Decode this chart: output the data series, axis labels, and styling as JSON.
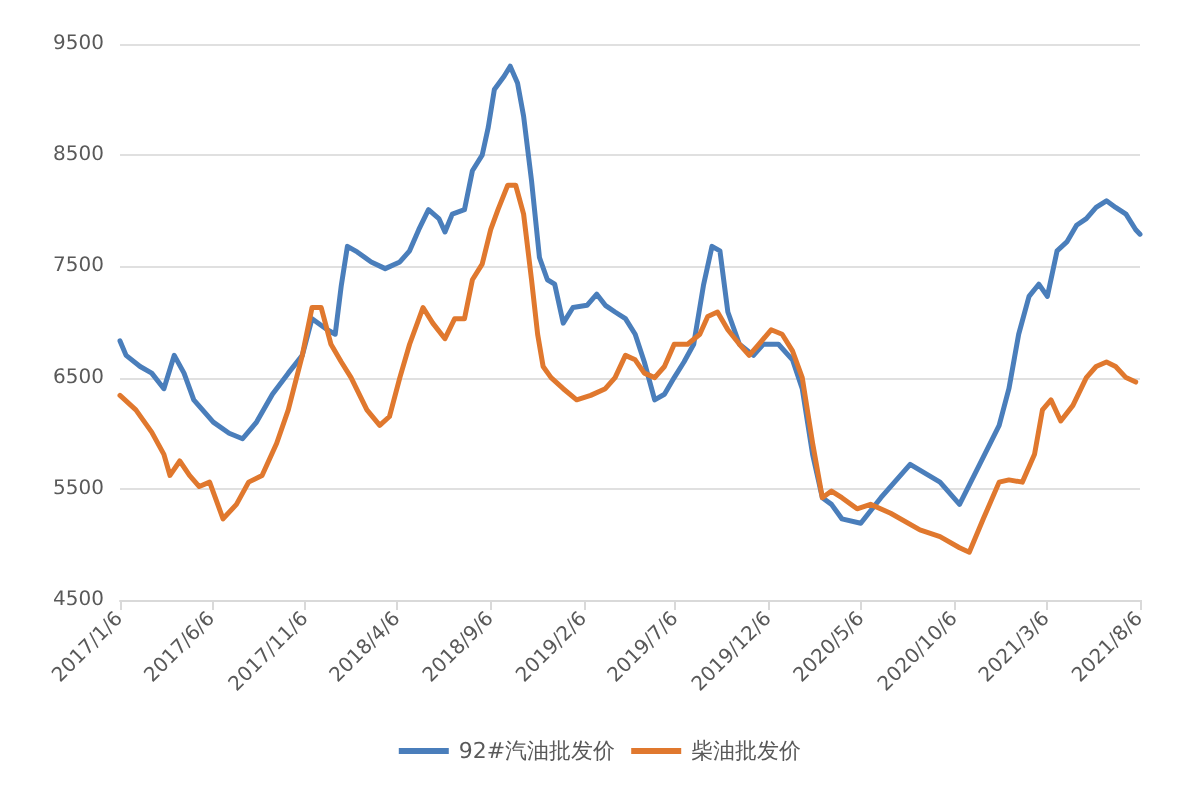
{
  "chart_data": {
    "type": "line",
    "legend": "bottom",
    "grid": "y",
    "marker": "none",
    "line_style": "solid",
    "ylim": [
      4500,
      9500
    ],
    "yticks": [
      4500,
      5500,
      6500,
      7500,
      8500,
      9500
    ],
    "xlim": [
      "2017-01-06",
      "2021-08-06"
    ],
    "xticks": [
      {
        "value": "2017-01-06",
        "label": "2017/1/6"
      },
      {
        "value": "2017-06-06",
        "label": "2017/6/6"
      },
      {
        "value": "2017-11-06",
        "label": "2017/11/6"
      },
      {
        "value": "2018-04-06",
        "label": "2018/4/6"
      },
      {
        "value": "2018-09-06",
        "label": "2018/9/6"
      },
      {
        "value": "2019-02-06",
        "label": "2019/2/6"
      },
      {
        "value": "2019-07-06",
        "label": "2019/7/6"
      },
      {
        "value": "2019-12-06",
        "label": "2019/12/6"
      },
      {
        "value": "2020-05-06",
        "label": "2020/5/6"
      },
      {
        "value": "2020-10-06",
        "label": "2020/10/6"
      },
      {
        "value": "2021-03-06",
        "label": "2021/3/6"
      },
      {
        "value": "2021-08-06",
        "label": "2021/8/6"
      }
    ],
    "series": [
      {
        "name": "92#汽油批发价",
        "color": "#4a7ebb",
        "x": [
          "2017-01-06",
          "2017-01-16",
          "2017-02-08",
          "2017-02-27",
          "2017-03-19",
          "2017-04-05",
          "2017-04-21",
          "2017-05-07",
          "2017-06-08",
          "2017-07-04",
          "2017-07-26",
          "2017-08-18",
          "2017-09-13",
          "2017-10-09",
          "2017-11-01",
          "2017-11-17",
          "2017-12-12",
          "2017-12-25",
          "2018-01-04",
          "2018-01-14",
          "2018-01-30",
          "2018-02-22",
          "2018-03-17",
          "2018-04-10",
          "2018-04-26",
          "2018-05-11",
          "2018-05-27",
          "2018-06-13",
          "2018-06-23",
          "2018-07-05",
          "2018-07-25",
          "2018-08-07",
          "2018-08-23",
          "2018-09-02",
          "2018-09-12",
          "2018-09-28",
          "2018-10-08",
          "2018-10-20",
          "2018-10-30",
          "2018-11-12",
          "2018-11-25",
          "2018-12-08",
          "2018-12-20",
          "2019-01-03",
          "2019-01-19",
          "2019-02-11",
          "2019-02-27",
          "2019-03-13",
          "2019-03-29",
          "2019-04-15",
          "2019-05-01",
          "2019-05-16",
          "2019-06-02",
          "2019-06-18",
          "2019-07-04",
          "2019-07-20",
          "2019-08-05",
          "2019-08-21",
          "2019-09-04",
          "2019-09-17",
          "2019-09-30",
          "2019-10-19",
          "2019-11-11",
          "2019-11-27",
          "2019-12-22",
          "2020-01-14",
          "2020-01-30",
          "2020-02-16",
          "2020-03-03",
          "2020-03-18",
          "2020-04-04",
          "2020-05-05",
          "2020-06-07",
          "2020-07-25",
          "2020-09-12",
          "2020-10-14",
          "2020-11-16",
          "2020-12-18",
          "2021-01-03",
          "2021-01-19",
          "2021-02-05",
          "2021-02-21",
          "2021-03-07",
          "2021-03-23",
          "2021-04-08",
          "2021-04-24",
          "2021-05-10",
          "2021-05-26",
          "2021-06-12",
          "2021-06-27",
          "2021-07-14",
          "2021-07-30",
          "2021-08-06"
        ],
        "values": [
          6830,
          6700,
          6600,
          6540,
          6400,
          6700,
          6540,
          6300,
          6100,
          6000,
          5950,
          6100,
          6350,
          6540,
          6700,
          7030,
          6930,
          6890,
          7330,
          7680,
          7630,
          7540,
          7480,
          7540,
          7640,
          7830,
          8010,
          7930,
          7810,
          7970,
          8010,
          8360,
          8500,
          8750,
          9090,
          9210,
          9300,
          9150,
          8850,
          8270,
          7580,
          7380,
          7340,
          6990,
          7130,
          7150,
          7250,
          7150,
          7090,
          7030,
          6890,
          6640,
          6300,
          6350,
          6500,
          6640,
          6800,
          7330,
          7680,
          7640,
          7090,
          6800,
          6700,
          6800,
          6800,
          6660,
          6400,
          5810,
          5420,
          5360,
          5230,
          5190,
          5420,
          5720,
          5560,
          5360,
          5720,
          6070,
          6400,
          6890,
          7230,
          7340,
          7230,
          7640,
          7720,
          7870,
          7930,
          8030,
          8090,
          8030,
          7970,
          7830,
          7790
        ]
      },
      {
        "name": "柴油批发价",
        "color": "#e0782e",
        "x": [
          "2017-01-06",
          "2017-02-01",
          "2017-02-27",
          "2017-03-19",
          "2017-03-29",
          "2017-04-14",
          "2017-04-30",
          "2017-05-16",
          "2017-06-02",
          "2017-06-24",
          "2017-07-16",
          "2017-08-05",
          "2017-08-27",
          "2017-09-20",
          "2017-10-09",
          "2017-11-01",
          "2017-11-17",
          "2017-12-02",
          "2017-12-18",
          "2018-01-04",
          "2018-01-20",
          "2018-02-15",
          "2018-03-08",
          "2018-03-24",
          "2018-04-10",
          "2018-04-26",
          "2018-05-18",
          "2018-06-03",
          "2018-06-23",
          "2018-07-09",
          "2018-07-25",
          "2018-08-07",
          "2018-08-23",
          "2018-09-06",
          "2018-09-18",
          "2018-10-04",
          "2018-10-17",
          "2018-10-30",
          "2018-11-12",
          "2018-11-22",
          "2018-12-01",
          "2018-12-14",
          "2019-01-03",
          "2019-01-25",
          "2019-02-17",
          "2019-03-13",
          "2019-03-29",
          "2019-04-15",
          "2019-05-01",
          "2019-05-16",
          "2019-06-02",
          "2019-06-18",
          "2019-07-04",
          "2019-07-26",
          "2019-08-15",
          "2019-08-28",
          "2019-09-13",
          "2019-09-30",
          "2019-10-19",
          "2019-11-04",
          "2019-11-20",
          "2019-12-10",
          "2019-12-28",
          "2020-01-14",
          "2020-01-30",
          "2020-02-16",
          "2020-03-03",
          "2020-03-18",
          "2020-04-04",
          "2020-04-29",
          "2020-05-21",
          "2020-06-23",
          "2020-08-10",
          "2020-09-12",
          "2020-10-14",
          "2020-10-30",
          "2020-11-22",
          "2020-12-18",
          "2021-01-03",
          "2021-01-25",
          "2021-02-14",
          "2021-02-27",
          "2021-03-13",
          "2021-03-29",
          "2021-04-18",
          "2021-05-10",
          "2021-05-26",
          "2021-06-12",
          "2021-06-27",
          "2021-07-14",
          "2021-07-30"
        ],
        "values": [
          6340,
          6210,
          6010,
          5810,
          5620,
          5750,
          5620,
          5520,
          5560,
          5230,
          5360,
          5560,
          5620,
          5910,
          6210,
          6700,
          7130,
          7130,
          6800,
          6640,
          6500,
          6210,
          6070,
          6150,
          6500,
          6800,
          7130,
          6990,
          6850,
          7030,
          7030,
          7380,
          7520,
          7830,
          8010,
          8230,
          8230,
          7970,
          7380,
          6890,
          6600,
          6500,
          6400,
          6300,
          6340,
          6400,
          6500,
          6700,
          6660,
          6540,
          6500,
          6600,
          6800,
          6800,
          6890,
          7050,
          7090,
          6930,
          6800,
          6700,
          6800,
          6930,
          6890,
          6740,
          6500,
          5910,
          5420,
          5480,
          5420,
          5320,
          5360,
          5280,
          5130,
          5070,
          4970,
          4930,
          5230,
          5560,
          5580,
          5560,
          5810,
          6210,
          6300,
          6110,
          6250,
          6500,
          6600,
          6640,
          6600,
          6500,
          6460
        ]
      }
    ]
  }
}
